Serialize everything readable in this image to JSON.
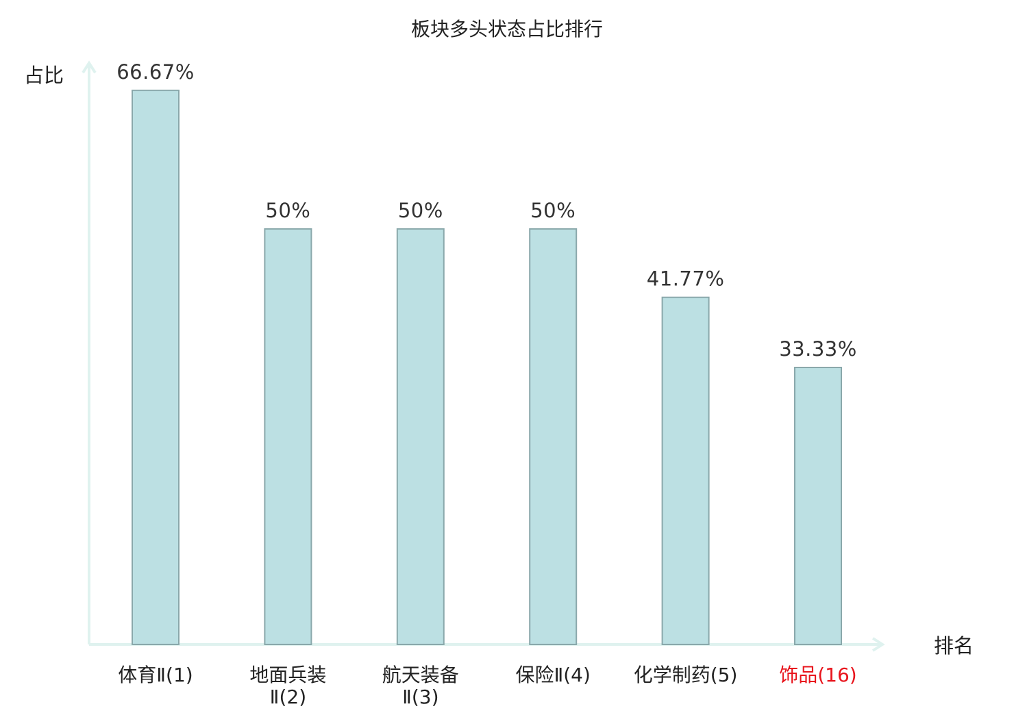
{
  "chart_data": {
    "type": "bar",
    "title": "板块多头状态占比排行",
    "ylabel": "占比",
    "xlabel": "排名",
    "ylim": [
      0,
      70
    ],
    "grid": false,
    "categories": [
      {
        "name": "体育Ⅱ",
        "rank": "(1)",
        "lines": [
          "体育Ⅱ(1)"
        ],
        "highlight": false
      },
      {
        "name": "地面兵装Ⅱ",
        "rank": "(2)",
        "lines": [
          "地面兵装",
          "Ⅱ(2)"
        ],
        "highlight": false
      },
      {
        "name": "航天装备Ⅱ",
        "rank": "(3)",
        "lines": [
          "航天装备",
          "Ⅱ(3)"
        ],
        "highlight": false
      },
      {
        "name": "保险Ⅱ",
        "rank": "(4)",
        "lines": [
          "保险Ⅱ(4)"
        ],
        "highlight": false
      },
      {
        "name": "化学制药",
        "rank": "(5)",
        "lines": [
          "化学制药(5)"
        ],
        "highlight": false
      },
      {
        "name": "饰品",
        "rank": "(16)",
        "lines": [
          "饰品(16)"
        ],
        "highlight": true
      }
    ],
    "values": [
      66.67,
      50,
      50,
      50,
      41.77,
      33.33
    ],
    "value_labels": [
      "66.67%",
      "50%",
      "50%",
      "50%",
      "41.77%",
      "33.33%"
    ],
    "colors": {
      "bar_fill": "#bce0e3",
      "bar_stroke": "#8aa8ab",
      "axis": "#dff2ef",
      "text": "#222222",
      "highlight": "#e8141c"
    }
  }
}
